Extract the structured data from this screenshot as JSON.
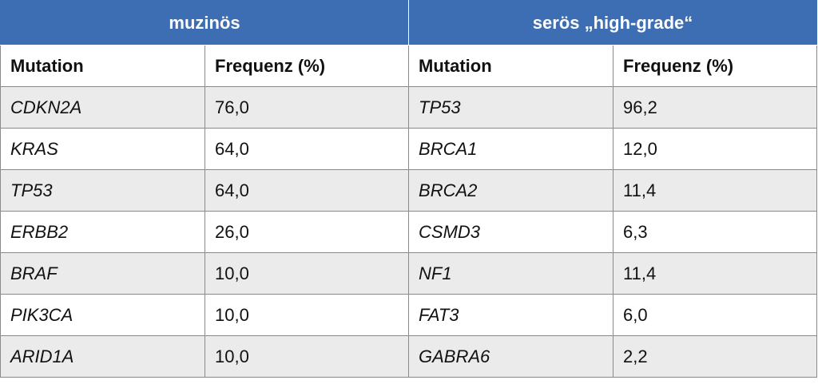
{
  "groups": {
    "mucinous": "muzinös",
    "serous": "serös „high-grade“"
  },
  "columns": {
    "mucinous_mutation": "Mutation",
    "mucinous_frequency": "Frequenz (%)",
    "serous_mutation": "Mutation",
    "serous_frequency": "Frequenz (%)"
  },
  "rows": [
    {
      "m_gene": "CDKN2A",
      "m_freq": "76,0",
      "s_gene": "TP53",
      "s_freq": "96,2"
    },
    {
      "m_gene": "KRAS",
      "m_freq": "64,0",
      "s_gene": "BRCA1",
      "s_freq": "12,0"
    },
    {
      "m_gene": "TP53",
      "m_freq": "64,0",
      "s_gene": "BRCA2",
      "s_freq": "11,4"
    },
    {
      "m_gene": "ERBB2",
      "m_freq": "26,0",
      "s_gene": "CSMD3",
      "s_freq": "6,3"
    },
    {
      "m_gene": "BRAF",
      "m_freq": "10,0",
      "s_gene": "NF1",
      "s_freq": "11,4"
    },
    {
      "m_gene": "PIK3CA",
      "m_freq": "10,0",
      "s_gene": "FAT3",
      "s_freq": "6,0"
    },
    {
      "m_gene": "ARID1A",
      "m_freq": "10,0",
      "s_gene": "GABRA6",
      "s_freq": "2,2"
    }
  ],
  "colors": {
    "header_blue": "#3d6eb4",
    "row_shade": "#ebebeb"
  }
}
